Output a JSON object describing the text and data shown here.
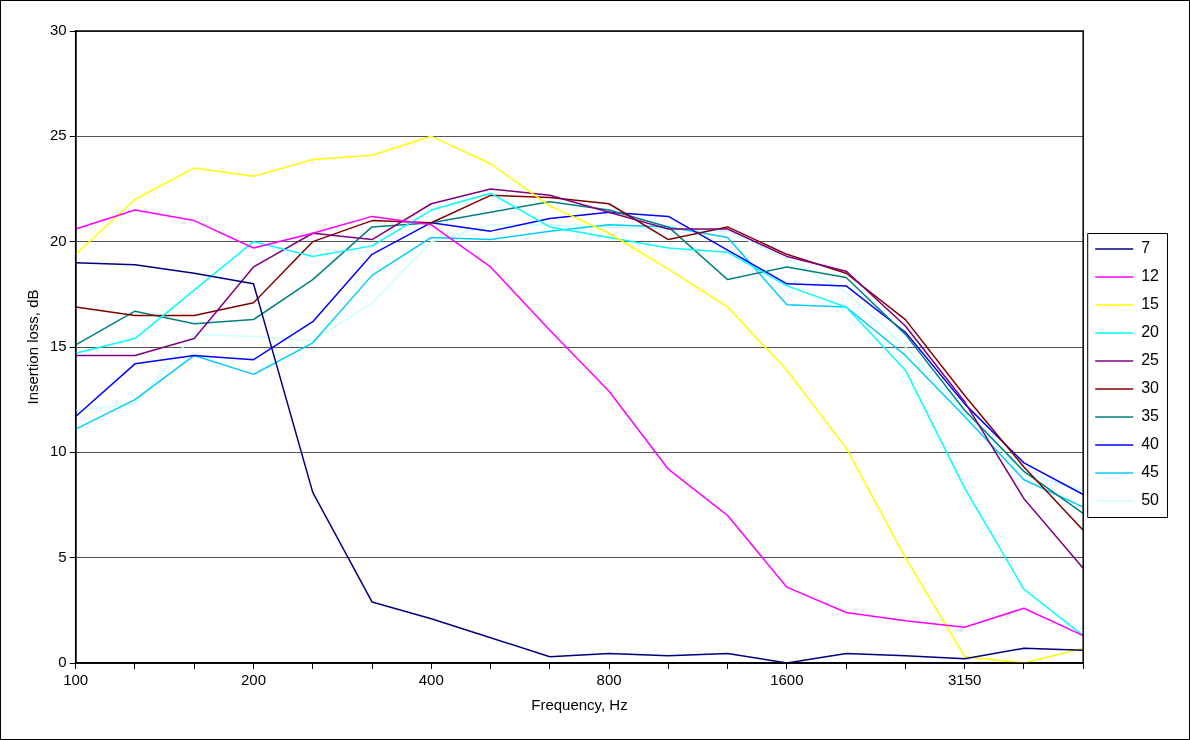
{
  "chart_data": {
    "type": "line",
    "xlabel": "Frequency, Hz",
    "ylabel": "Insertion loss, dB",
    "categories": [
      "100",
      null,
      null,
      "200",
      null,
      null,
      "400",
      null,
      null,
      "800",
      null,
      null,
      "1600",
      null,
      null,
      "3150",
      null,
      null
    ],
    "ylim": [
      0,
      30
    ],
    "yticks": [
      0,
      5,
      10,
      15,
      20,
      25,
      30
    ],
    "grid": "y",
    "legend": "right",
    "marker": "none",
    "line_style": "solid",
    "series": [
      {
        "name": "7",
        "color": "#000080",
        "values": [
          19.0,
          18.9,
          18.5,
          18.0,
          8.1,
          2.9,
          2.1,
          1.2,
          0.3,
          0.45,
          0.35,
          0.45,
          0.0,
          0.45,
          0.35,
          0.2,
          0.7,
          0.6
        ]
      },
      {
        "name": "12",
        "color": "#ff00ff",
        "values": [
          20.6,
          21.5,
          21.0,
          19.7,
          20.4,
          21.2,
          20.8,
          18.8,
          15.8,
          12.9,
          9.2,
          7.0,
          3.6,
          2.4,
          2.0,
          1.7,
          2.6,
          1.3
        ]
      },
      {
        "name": "15",
        "color": "#ffff00",
        "values": [
          19.4,
          22.0,
          23.5,
          23.1,
          23.9,
          24.1,
          25.0,
          23.7,
          21.7,
          20.4,
          18.7,
          16.9,
          13.9,
          10.2,
          5.0,
          0.3,
          0.0,
          0.7
        ]
      },
      {
        "name": "20",
        "color": "#00ffff",
        "values": [
          14.7,
          15.4,
          17.7,
          20.0,
          19.3,
          19.8,
          21.5,
          22.3,
          20.7,
          20.2,
          19.7,
          19.5,
          17.9,
          16.9,
          13.9,
          8.3,
          3.5,
          1.3
        ]
      },
      {
        "name": "25",
        "color": "#800080",
        "values": [
          14.6,
          14.6,
          15.4,
          18.8,
          20.4,
          20.1,
          21.8,
          22.5,
          22.2,
          21.4,
          20.6,
          20.6,
          19.3,
          18.6,
          16.0,
          12.4,
          7.8,
          4.5
        ]
      },
      {
        "name": "30",
        "color": "#800000",
        "values": [
          16.9,
          16.5,
          16.5,
          17.1,
          20.0,
          21.0,
          20.9,
          22.2,
          22.1,
          21.8,
          20.1,
          20.7,
          19.4,
          18.5,
          16.3,
          12.7,
          9.3,
          6.3
        ]
      },
      {
        "name": "35",
        "color": "#008080",
        "values": [
          15.1,
          16.7,
          16.1,
          16.3,
          18.2,
          20.7,
          20.9,
          21.4,
          21.9,
          21.5,
          20.7,
          18.2,
          18.8,
          18.3,
          15.6,
          12.0,
          9.1,
          7.1
        ]
      },
      {
        "name": "40",
        "color": "#0000ff",
        "values": [
          11.7,
          14.2,
          14.6,
          14.4,
          16.2,
          19.4,
          20.9,
          20.5,
          21.1,
          21.4,
          21.2,
          19.6,
          18.0,
          17.9,
          15.7,
          12.3,
          9.5,
          8.0
        ]
      },
      {
        "name": "45",
        "color": "#00ccff",
        "values": [
          11.1,
          12.5,
          14.6,
          13.7,
          15.2,
          18.4,
          20.2,
          20.1,
          20.5,
          20.8,
          20.7,
          20.2,
          17.0,
          16.9,
          14.6,
          11.7,
          8.7,
          7.4
        ]
      },
      {
        "name": "50",
        "color": "#ccffff",
        "values": [
          12.0,
          12.3,
          15.6,
          15.5,
          15.3,
          17.1,
          20.0,
          20.8,
          20.8,
          20.7,
          20.6,
          20.5,
          19.2,
          17.6,
          15.0,
          11.9,
          9.0,
          8.2
        ]
      }
    ]
  }
}
